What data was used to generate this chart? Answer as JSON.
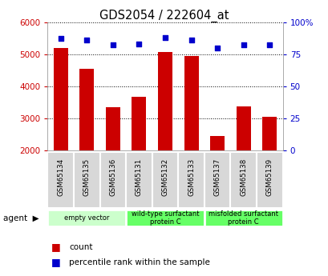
{
  "title": "GDS2054 / 222604_at",
  "samples": [
    "GSM65134",
    "GSM65135",
    "GSM65136",
    "GSM65131",
    "GSM65132",
    "GSM65133",
    "GSM65137",
    "GSM65138",
    "GSM65139"
  ],
  "counts": [
    5200,
    4550,
    3350,
    3680,
    5060,
    4950,
    2450,
    3380,
    3060
  ],
  "percentiles": [
    87,
    86,
    82,
    83,
    88,
    86,
    80,
    82,
    82
  ],
  "count_ylim": [
    2000,
    6000
  ],
  "percentile_ylim": [
    0,
    100
  ],
  "count_yticks": [
    2000,
    3000,
    4000,
    5000,
    6000
  ],
  "percentile_yticks": [
    0,
    25,
    50,
    75,
    100
  ],
  "percentile_ytick_labels": [
    "0",
    "25",
    "50",
    "75",
    "100%"
  ],
  "bar_color": "#cc0000",
  "dot_color": "#0000cc",
  "group_configs": [
    {
      "label": "empty vector",
      "start": 0,
      "end": 3,
      "color": "#ccffcc"
    },
    {
      "label": "wild-type surfactant\nprotein C",
      "start": 3,
      "end": 6,
      "color": "#66ff66"
    },
    {
      "label": "misfolded surfactant\nprotein C",
      "start": 6,
      "end": 9,
      "color": "#66ff66"
    }
  ],
  "sample_box_color": "#d8d8d8",
  "legend_count_label": "count",
  "legend_percentile_label": "percentile rank within the sample",
  "background_color": "#ffffff",
  "tick_color_left": "#cc0000",
  "tick_color_right": "#0000cc"
}
